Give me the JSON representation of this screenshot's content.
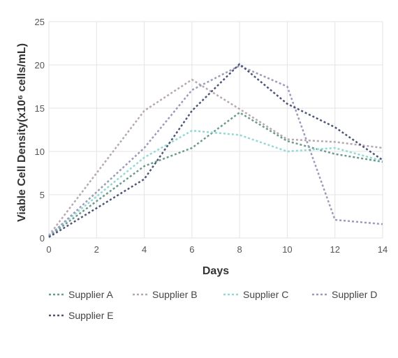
{
  "chart_data": {
    "type": "line",
    "title": "",
    "xlabel": "Days",
    "ylabel": "Viable Cell Density(x10⁶ cells/mL)",
    "x": [
      0,
      4,
      6,
      8,
      10,
      12,
      14
    ],
    "xticks": [
      0,
      2,
      4,
      6,
      8,
      10,
      12,
      14
    ],
    "yticks": [
      0,
      5,
      10,
      15,
      20,
      25
    ],
    "xlim": [
      0,
      14
    ],
    "ylim": [
      0,
      25
    ],
    "grid": true,
    "legend_position": "bottom",
    "line_style": "dashed",
    "series": [
      {
        "name": "Supplier A",
        "color": "#6b9a8c",
        "values": [
          0.2,
          8.3,
          10.4,
          14.5,
          11.2,
          9.7,
          8.8
        ]
      },
      {
        "name": "Supplier B",
        "color": "#b6a7b0",
        "values": [
          0.3,
          14.7,
          18.3,
          14.9,
          11.4,
          11.1,
          10.4
        ]
      },
      {
        "name": "Supplier C",
        "color": "#92d9d3",
        "values": [
          0.3,
          9.3,
          12.4,
          11.9,
          10.0,
          10.4,
          8.9
        ]
      },
      {
        "name": "Supplier D",
        "color": "#9a9bbb",
        "values": [
          0.2,
          10.4,
          17.1,
          19.9,
          17.5,
          2.1,
          1.6
        ]
      },
      {
        "name": "Supplier E",
        "color": "#4d5577",
        "values": [
          0.1,
          6.8,
          14.7,
          20.1,
          15.5,
          12.8,
          9.0
        ]
      }
    ]
  }
}
